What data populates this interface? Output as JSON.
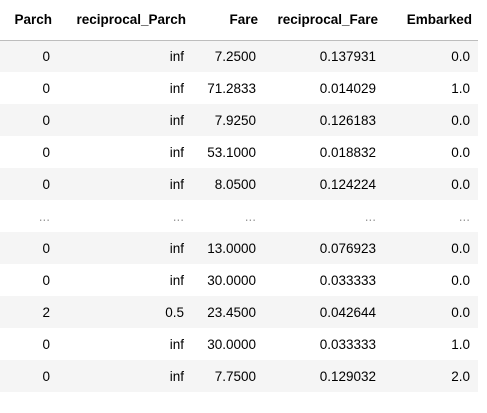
{
  "table": {
    "columns": [
      "Parch",
      "reciprocal_Parch",
      "Fare",
      "reciprocal_Fare",
      "Embarked"
    ],
    "rows": [
      [
        "0",
        "inf",
        "7.2500",
        "0.137931",
        "0.0"
      ],
      [
        "0",
        "inf",
        "71.2833",
        "0.014029",
        "1.0"
      ],
      [
        "0",
        "inf",
        "7.9250",
        "0.126183",
        "0.0"
      ],
      [
        "0",
        "inf",
        "53.1000",
        "0.018832",
        "0.0"
      ],
      [
        "0",
        "inf",
        "8.0500",
        "0.124224",
        "0.0"
      ],
      [
        "...",
        "...",
        "...",
        "...",
        "..."
      ],
      [
        "0",
        "inf",
        "13.0000",
        "0.076923",
        "0.0"
      ],
      [
        "0",
        "inf",
        "30.0000",
        "0.033333",
        "0.0"
      ],
      [
        "2",
        "0.5",
        "23.4500",
        "0.042644",
        "0.0"
      ],
      [
        "0",
        "inf",
        "30.0000",
        "0.033333",
        "1.0"
      ],
      [
        "0",
        "inf",
        "7.7500",
        "0.129032",
        "2.0"
      ]
    ]
  }
}
